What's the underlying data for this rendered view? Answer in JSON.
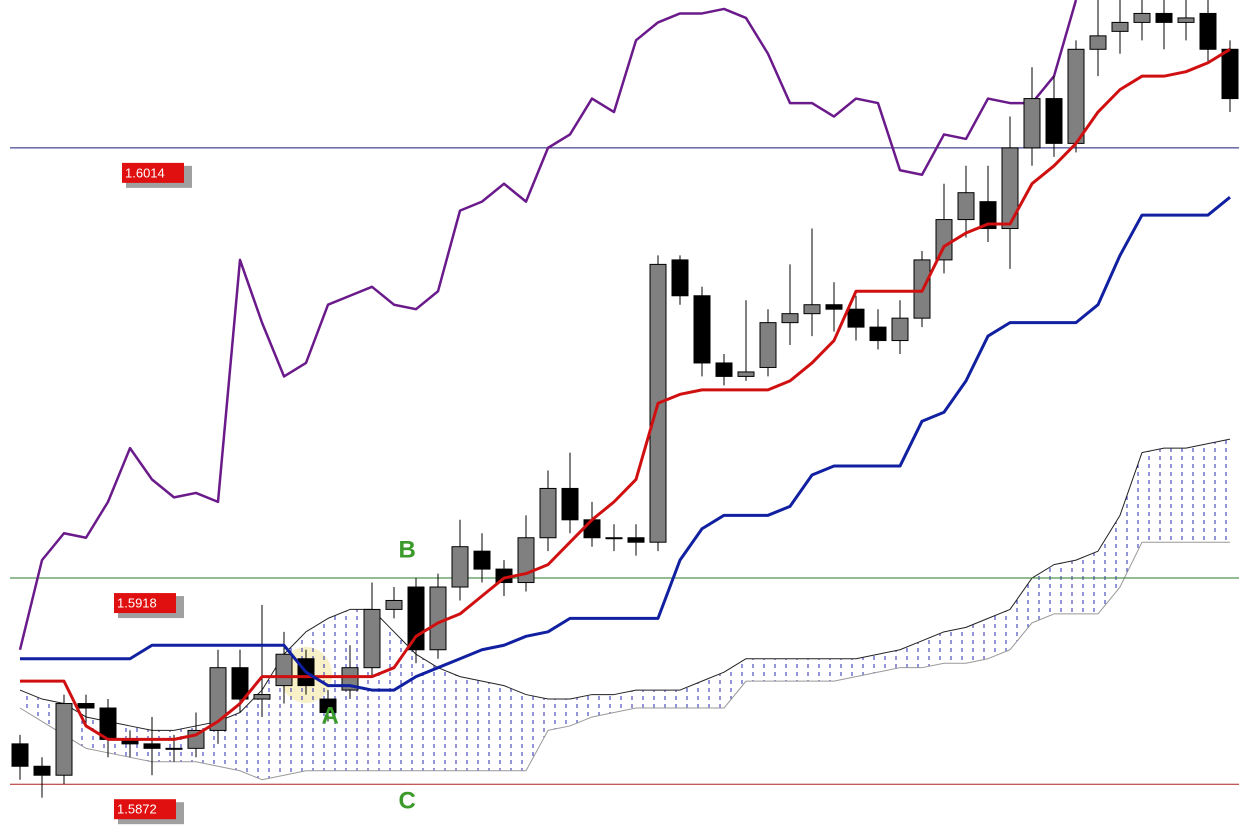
{
  "chart_data": {
    "type": "candlestick",
    "ylim": [
      1.5862,
      1.6047
    ],
    "up_color": "#808080",
    "down_color": "#000000",
    "open": [
      1.5881,
      1.5876,
      1.5874,
      1.589,
      1.5889,
      1.5882,
      1.5881,
      1.588,
      1.588,
      1.5884,
      1.5898,
      1.5891,
      1.5894,
      1.59,
      1.5891,
      1.5893,
      1.5898,
      1.5911,
      1.5916,
      1.5902,
      1.5916,
      1.5924,
      1.592,
      1.5917,
      1.5927,
      1.5938,
      1.5931,
      1.5927,
      1.5927,
      1.5926,
      1.5989,
      1.5981,
      1.5966,
      1.5963,
      1.5965,
      1.5975,
      1.5977,
      1.5979,
      1.5978,
      1.5974,
      1.5971,
      1.5976,
      1.5989,
      1.5998,
      1.6002,
      1.5996,
      1.6014,
      1.6025,
      1.6015,
      1.6036,
      1.604,
      1.6042,
      1.6044,
      1.6042,
      1.6044,
      1.6036
    ],
    "high": [
      1.5883,
      1.5878,
      1.5892,
      1.5892,
      1.5891,
      1.5884,
      1.5887,
      1.5883,
      1.5888,
      1.5902,
      1.5902,
      1.5912,
      1.5906,
      1.5902,
      1.5893,
      1.5903,
      1.5917,
      1.5916,
      1.5918,
      1.5919,
      1.5931,
      1.5928,
      1.5922,
      1.5932,
      1.5942,
      1.5946,
      1.5935,
      1.593,
      1.593,
      1.599,
      1.599,
      1.5983,
      1.5968,
      1.598,
      1.5978,
      1.5988,
      1.5996,
      1.5984,
      1.5981,
      1.5978,
      1.598,
      1.5991,
      1.6006,
      1.601,
      1.601,
      1.6021,
      1.6032,
      1.603,
      1.6038,
      1.6047,
      1.6047,
      1.6047,
      1.6047,
      1.6047,
      1.6047,
      1.6038
    ],
    "low": [
      1.5873,
      1.5869,
      1.5872,
      1.5885,
      1.5878,
      1.5878,
      1.5874,
      1.5877,
      1.5878,
      1.5881,
      1.5888,
      1.5887,
      1.589,
      1.5892,
      1.5886,
      1.5891,
      1.5896,
      1.5909,
      1.5899,
      1.59,
      1.5913,
      1.5917,
      1.5914,
      1.5915,
      1.5924,
      1.5928,
      1.5925,
      1.5924,
      1.5923,
      1.5924,
      1.5979,
      1.5963,
      1.5961,
      1.5962,
      1.5963,
      1.597,
      1.5972,
      1.5973,
      1.5971,
      1.5969,
      1.5968,
      1.5974,
      1.5986,
      1.5994,
      1.5993,
      1.5987,
      1.601,
      1.6012,
      1.6013,
      1.603,
      1.6035,
      1.6038,
      1.6036,
      1.6038,
      1.6033,
      1.6022
    ],
    "close": [
      1.5876,
      1.5874,
      1.589,
      1.5889,
      1.5882,
      1.5881,
      1.588,
      1.588,
      1.5884,
      1.5898,
      1.5891,
      1.5892,
      1.5901,
      1.5894,
      1.5888,
      1.5898,
      1.5911,
      1.5913,
      1.5902,
      1.5916,
      1.5925,
      1.592,
      1.5917,
      1.5927,
      1.5938,
      1.5931,
      1.5927,
      1.5927,
      1.5926,
      1.5988,
      1.5981,
      1.5966,
      1.5963,
      1.5964,
      1.5975,
      1.5977,
      1.5979,
      1.5978,
      1.5974,
      1.5971,
      1.5976,
      1.5989,
      1.5998,
      1.6004,
      1.5996,
      1.6014,
      1.6025,
      1.6015,
      1.6036,
      1.6039,
      1.6042,
      1.6044,
      1.6042,
      1.6043,
      1.6036,
      1.6025
    ],
    "lines": [
      {
        "color": "#6a1a8a",
        "values": [
          1.5902,
          1.5922,
          1.5928,
          1.5927,
          1.5935,
          1.5947,
          1.594,
          1.5936,
          1.5937,
          1.5935,
          1.5989,
          1.5975,
          1.5963,
          1.5966,
          1.5979,
          1.5981,
          1.5983,
          1.5979,
          1.5978,
          1.5982,
          1.6,
          1.6002,
          1.6006,
          1.6002,
          1.6014,
          1.6017,
          1.6025,
          1.6022,
          1.6038,
          1.6042,
          1.6044,
          1.6044,
          1.6045,
          1.6043,
          1.6035,
          1.6024,
          1.6024,
          1.6021,
          1.6025,
          1.6024,
          1.6009,
          1.6008,
          1.6017,
          1.6016,
          1.6025,
          1.6024,
          1.6024,
          1.603,
          1.6047,
          null,
          null,
          null,
          null,
          null,
          null,
          null
        ]
      },
      {
        "color": "#d01010",
        "values": [
          1.5895,
          1.5895,
          1.5895,
          1.5885,
          1.5882,
          1.5882,
          1.5882,
          1.5882,
          1.5883,
          1.5886,
          1.589,
          1.5896,
          1.5896,
          1.5896,
          1.5896,
          1.5896,
          1.5896,
          1.5898,
          1.5905,
          1.5908,
          1.591,
          1.5914,
          1.5918,
          1.5919,
          1.5921,
          1.5926,
          1.5931,
          1.5935,
          1.594,
          1.5957,
          1.5959,
          1.596,
          1.596,
          1.596,
          1.596,
          1.5962,
          1.5966,
          1.5971,
          1.5982,
          1.5982,
          1.5982,
          1.5982,
          1.5992,
          1.5995,
          1.5997,
          1.5997,
          1.6006,
          1.601,
          1.6015,
          1.6022,
          1.6027,
          1.603,
          1.603,
          1.6031,
          1.6033,
          1.6036
        ]
      },
      {
        "color": "#1020a0",
        "values": [
          1.59,
          1.59,
          1.59,
          1.59,
          1.59,
          1.59,
          1.5903,
          1.5903,
          1.5903,
          1.5903,
          1.5903,
          1.5903,
          1.5903,
          1.5897,
          1.5894,
          1.5894,
          1.5893,
          1.5893,
          1.5896,
          1.5898,
          1.59,
          1.5902,
          1.5903,
          1.5905,
          1.5906,
          1.5909,
          1.5909,
          1.5909,
          1.5909,
          1.5909,
          1.5922,
          1.5929,
          1.5932,
          1.5932,
          1.5932,
          1.5934,
          1.5941,
          1.5943,
          1.5943,
          1.5943,
          1.5943,
          1.5953,
          1.5955,
          1.5962,
          1.5972,
          1.5975,
          1.5975,
          1.5975,
          1.5975,
          1.5979,
          1.599,
          1.5999,
          1.5999,
          1.5999,
          1.5999,
          1.6003
        ]
      }
    ],
    "cloud": {
      "color": "#1a1aa0",
      "span_a": [
        1.5893,
        1.5891,
        1.589,
        1.5887,
        1.5886,
        1.5885,
        1.5884,
        1.5884,
        1.5885,
        1.5886,
        1.5888,
        1.5893,
        1.5901,
        1.5906,
        1.5909,
        1.5911,
        1.5911,
        1.5906,
        1.5901,
        1.5898,
        1.5896,
        1.5895,
        1.5894,
        1.5892,
        1.5891,
        1.5891,
        1.5892,
        1.5892,
        1.5893,
        1.5893,
        1.5893,
        1.5895,
        1.5897,
        1.59,
        1.59,
        1.59,
        1.59,
        1.59,
        1.59,
        1.5901,
        1.5902,
        1.5904,
        1.5906,
        1.5907,
        1.5909,
        1.5911,
        1.5918,
        1.5921,
        1.5922,
        1.5924,
        1.5932,
        1.5946,
        1.5947,
        1.5947,
        1.5948,
        1.5949
      ],
      "span_b": [
        1.5889,
        1.5886,
        1.5883,
        1.588,
        1.5879,
        1.5878,
        1.5877,
        1.5877,
        1.5877,
        1.5876,
        1.5875,
        1.5873,
        1.5874,
        1.5875,
        1.5875,
        1.5875,
        1.5875,
        1.5875,
        1.5875,
        1.5875,
        1.5875,
        1.5875,
        1.5875,
        1.5875,
        1.5884,
        1.5885,
        1.5887,
        1.5888,
        1.5889,
        1.5889,
        1.5889,
        1.5889,
        1.5889,
        1.5895,
        1.5895,
        1.5895,
        1.5895,
        1.5895,
        1.5896,
        1.5897,
        1.5898,
        1.5898,
        1.5899,
        1.5899,
        1.59,
        1.5902,
        1.5908,
        1.591,
        1.591,
        1.591,
        1.5916,
        1.5926,
        1.5926,
        1.5926,
        1.5926,
        1.5926
      ]
    },
    "levels": [
      {
        "value": 1.6014,
        "color": "#1a1a7a"
      },
      {
        "value": 1.5918,
        "color": "#2a7a2a"
      },
      {
        "value": 1.5872,
        "color": "#b02020"
      }
    ],
    "annotations": [
      {
        "text": "A",
        "x": 14.1,
        "y": 1.5887
      },
      {
        "text": "B",
        "x": 17.6,
        "y": 1.5924
      },
      {
        "text": "C",
        "x": 17.6,
        "y": 1.5868
      }
    ]
  }
}
